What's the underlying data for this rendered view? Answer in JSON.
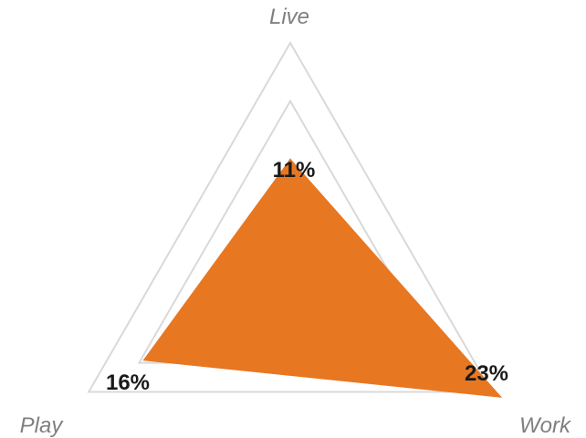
{
  "chart_data": {
    "type": "radar",
    "categories": [
      "Live",
      "Work",
      "Play"
    ],
    "values": [
      0.11,
      0.23,
      0.16
    ],
    "data_labels": [
      "11%",
      "23%",
      "16%"
    ],
    "rmax": 0.22,
    "grid_levels": 4,
    "series_color": "#e87722",
    "grid_color": "#d9d9d9",
    "axis_label_color": "#7f7f7f"
  }
}
